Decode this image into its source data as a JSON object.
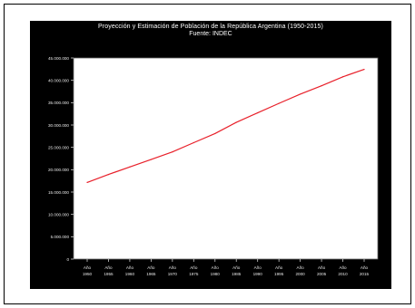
{
  "chart_data": {
    "type": "line",
    "title": "Proyección y Estimación de Población de la República Argentina (1950-2015)",
    "subtitle": "Fuente: INDEC",
    "x": [
      1950,
      1955,
      1960,
      1965,
      1970,
      1975,
      1980,
      1985,
      1990,
      1995,
      2000,
      2005,
      2010,
      2015
    ],
    "x_tick_labels": [
      [
        "Año",
        "1950"
      ],
      [
        "Año",
        "1955"
      ],
      [
        "Año",
        "1960"
      ],
      [
        "Año",
        "1965"
      ],
      [
        "Año",
        "1970"
      ],
      [
        "Año",
        "1975"
      ],
      [
        "Año",
        "1980"
      ],
      [
        "Año",
        "1985"
      ],
      [
        "Año",
        "1990"
      ],
      [
        "Año",
        "1995"
      ],
      [
        "Año",
        "2000"
      ],
      [
        "Año",
        "2005"
      ],
      [
        "Año",
        "2010"
      ],
      [
        "Año",
        "2015"
      ]
    ],
    "y_ticks": [
      0,
      5000000,
      10000000,
      15000000,
      20000000,
      25000000,
      30000000,
      35000000,
      40000000,
      45000000
    ],
    "y_tick_labels": [
      "0",
      "5.000.000",
      "10.000.000",
      "15.000.000",
      "20.000.000",
      "25.000.000",
      "30.000.000",
      "35.000.000",
      "40.000.000",
      "45.000.000"
    ],
    "ylim": [
      0,
      45000000
    ],
    "series": [
      {
        "values": [
          17150000,
          18930000,
          20620000,
          22280000,
          23980000,
          26050000,
          28090000,
          30600000,
          32730000,
          34840000,
          36900000,
          38790000,
          40790000,
          42450000
        ],
        "color": "#e8202a"
      }
    ],
    "grid": false
  }
}
